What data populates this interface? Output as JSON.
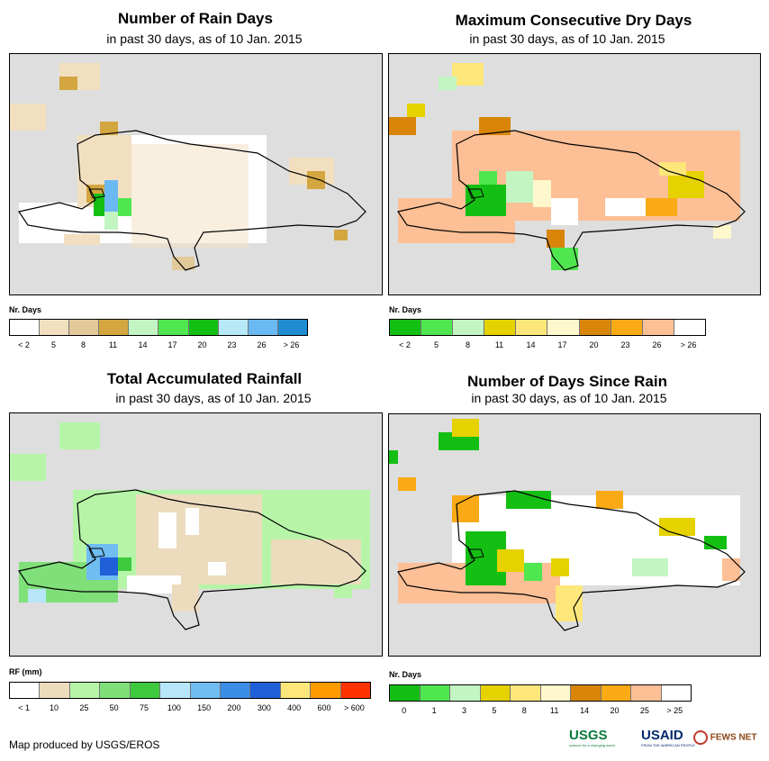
{
  "subtitle": "in past 30 days, as of 10 Jan. 2015",
  "panels": [
    {
      "id": "rain-days",
      "title": "Number of Rain Days",
      "legend_title": "Nr. Days",
      "colors": [
        "#ffffff",
        "#f2dfc0",
        "#e2c999",
        "#d4a640",
        "#c3f5c3",
        "#4fe64f",
        "#14bf14",
        "#b7e8f7",
        "#6ab9f2",
        "#1f8cd1"
      ],
      "ticks": [
        "< 2",
        "5",
        "8",
        "11",
        "14",
        "17",
        "20",
        "23",
        "26",
        "> 26"
      ]
    },
    {
      "id": "dry-days",
      "title": "Maximum Consecutive Dry Days",
      "legend_title": "Nr. Days",
      "colors": [
        "#14bf14",
        "#4fe64f",
        "#c3f5c3",
        "#e5d200",
        "#fde77a",
        "#fff8cc",
        "#d9850a",
        "#f9aa14",
        "#fdbf95",
        "#ffffff"
      ],
      "ticks": [
        "< 2",
        "5",
        "8",
        "11",
        "14",
        "17",
        "20",
        "23",
        "26",
        "> 26"
      ]
    },
    {
      "id": "rainfall",
      "title": "Total Accumulated Rainfall",
      "legend_title": "RF (mm)",
      "colors": [
        "#ffffff",
        "#ecdcbd",
        "#b6f5a8",
        "#7fe07a",
        "#3ec93e",
        "#b6e6f7",
        "#70bdf2",
        "#3a8ee8",
        "#1f5fd8",
        "#fde77a",
        "#ff9a00",
        "#ff3300"
      ],
      "ticks": [
        "< 1",
        "10",
        "25",
        "50",
        "75",
        "100",
        "150",
        "200",
        "300",
        "400",
        "600",
        "> 600"
      ]
    },
    {
      "id": "since-rain",
      "title": "Number of Days Since Rain",
      "legend_title": "Nr. Days",
      "colors": [
        "#14bf14",
        "#4fe64f",
        "#c3f5c3",
        "#e5d200",
        "#fde77a",
        "#fff8cc",
        "#d9850a",
        "#f9aa14",
        "#fdbf95",
        "#ffffff"
      ],
      "ticks": [
        "0",
        "1",
        "3",
        "5",
        "8",
        "11",
        "14",
        "20",
        "25",
        "> 25"
      ]
    }
  ],
  "footer": "Map produced by USGS/EROS",
  "logos": {
    "usgs": "USGS",
    "usgs_tagline": "science for a changing world",
    "usaid": "USAID",
    "usaid_tagline": "FROM THE AMERICAN PEOPLE",
    "fews": "FEWS NET"
  }
}
